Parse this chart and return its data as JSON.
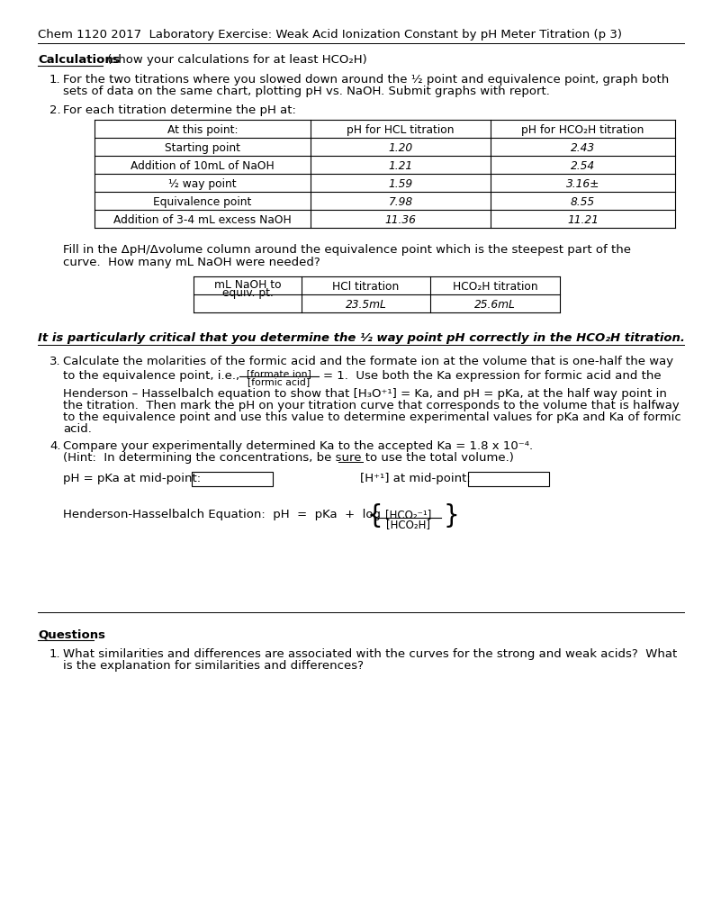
{
  "title": "Chem 1120 2017  Laboratory Exercise: Weak Acid Ionization Constant by pH Meter Titration (p 3)",
  "section_calculations": "Calculations",
  "section_calc_paren": " (show your calculations for at least HCO₂H)",
  "item1_l1": "For the two titrations where you slowed down around the ½ point and equivalence point, graph both",
  "item1_l2": "sets of data on the same chart, plotting pH vs. NaOH. Submit graphs with report.",
  "item2": "For each titration determine the pH at:",
  "table1_headers": [
    "At this point:",
    "pH for HCL titration",
    "pH for HCO₂H titration"
  ],
  "table1_rows": [
    [
      "Starting point",
      "1.20",
      "2.43"
    ],
    [
      "Addition of 10mL of NaOH",
      "1.21",
      "2.54"
    ],
    [
      "½ way point",
      "1.59",
      "3.16±"
    ],
    [
      "Equivalence point",
      "7.98",
      "8.55"
    ],
    [
      "Addition of 3-4 mL excess NaOH",
      "11.36",
      "11.21"
    ]
  ],
  "fill_l1": "Fill in the ΔpH/Δvolume column around the equivalence point which is the steepest part of the",
  "fill_l2": "curve.  How many mL NaOH were needed?",
  "table2_col0_l1": "mL NaOH to",
  "table2_col0_l2": "equiv. pt.",
  "table2_col1_hdr": "HCl titration",
  "table2_col2_hdr": "HCO₂H titration",
  "table2_col1_val": "23.5mL",
  "table2_col2_val": "25.6mL",
  "bold_note": "It is particularly critical that you determine the ½ way point pH correctly in the HCO₂H titration.",
  "i3_l1": "Calculate the molarities of the formic acid and the formate ion at the volume that is one-half the way",
  "i3_l2_pre": "to the equivalence point, i.e.,",
  "i3_frac_num": "[formate ion]",
  "i3_frac_den": "[formic acid]",
  "i3_l2_post": "= 1.  Use both the Ka expression for formic acid and the",
  "i3_l3": "Henderson – Hasselbalch equation to show that [H₃O⁺¹] = Ka, and pH = pKa, at the half way point in",
  "i3_l4": "the titration.  Then mark the pH on your titration curve that corresponds to the volume that is halfway",
  "i3_l5": "to the equivalence point and use this value to determine experimental values for pKa and Ka of formic",
  "i3_l6": "acid.",
  "i4_l1": "Compare your experimentally determined Ka to the accepted Ka = 1.8 x 10⁻⁴.",
  "i4_l2": "(Hint:  In determining the concentrations, be sure to use the total volume.)",
  "ph_label": "pH = pKa at mid-point:",
  "h_label": "[H⁺¹] at mid-point:",
  "hh_label": "Henderson-Hasselbalch Equation:  pH  =  pKa  +  log",
  "hh_frac_num": "[HCO₂⁻¹]",
  "hh_frac_den": "[HCO₂H]",
  "section_questions": "Questions",
  "q1_l1": "What similarities and differences are associated with the curves for the strong and weak acids?  What",
  "q1_l2": "is the explanation for similarities and differences?",
  "bg_color": "#ffffff",
  "text_color": "#000000"
}
